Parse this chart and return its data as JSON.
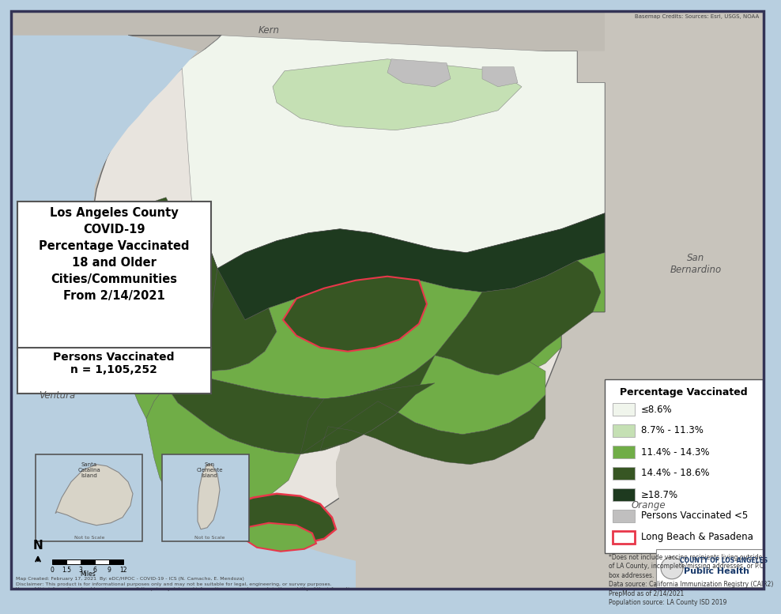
{
  "title_lines": [
    "Los Angeles County",
    "COVID-19",
    "Percentage Vaccinated",
    "18 and Older",
    "Cities/Communities",
    "From 2/14/2021"
  ],
  "persons_vaccinated": "Persons Vaccinated\nn = 1,105,252",
  "legend_title": "Percentage Vaccinated",
  "legend_items": [
    {
      "label": "≤8.6%",
      "color": "#f0f5ec",
      "edgecolor": "#aaaaaa"
    },
    {
      "label": "8.7% - 11.3%",
      "color": "#c5e0b4",
      "edgecolor": "#aaaaaa"
    },
    {
      "label": "11.4% - 14.3%",
      "color": "#70ad47",
      "edgecolor": "#aaaaaa"
    },
    {
      "label": "14.4% - 18.6%",
      "color": "#375623",
      "edgecolor": "#aaaaaa"
    },
    {
      "label": "≥18.7%",
      "color": "#1e3a1f",
      "edgecolor": "#aaaaaa"
    },
    {
      "label": "Persons Vaccinated <5",
      "color": "#c0bfbf",
      "edgecolor": "#aaaaaa"
    },
    {
      "label": "Long Beach & Pasadena",
      "color": "#ffffff",
      "edgecolor": "#e8374a",
      "border": true
    }
  ],
  "footnote": "*Does not include vaccine recipients living outside\nof LA County, incomplete/missing addresses, or P.O.\nbox addresses.\nData source: California Immunization Registry (CAIR2)\nPrepMod as of 2/14/2021\nPopulation source: LA County ISD 2019",
  "bg_water": "#b8cfe0",
  "bg_terrain_outside": "#c8c4bc",
  "bg_terrain_inside": "#e8e4de",
  "kern_color": "#c0bcb4",
  "san_bern_color": "#c8c4bc",
  "map_border_color": "#888888",
  "outer_frame_color": "#333355",
  "disclaimer": "Map Created: February 17, 2021  By: eDC/HPOC - COVID-19 - ICS (N. Camacho, E. Mendoza)\nDisclaimer: This product is for informational purposes only and may not be suitable for legal, engineering, or survey purposes.\nUsers of this information should review or consult the primary data and information sources to ascertain the usability of the information.",
  "credit": "Basemap Credits: Sources: Esri, USGS, NOAA",
  "colors": {
    "white_vax": "#f0f5ec",
    "light_green": "#c5e0b4",
    "med_green": "#70ad47",
    "dark_green": "#375623",
    "darkest_green": "#1e3a1f",
    "gray": "#c0bfbf",
    "red_border": "#e8374a"
  }
}
